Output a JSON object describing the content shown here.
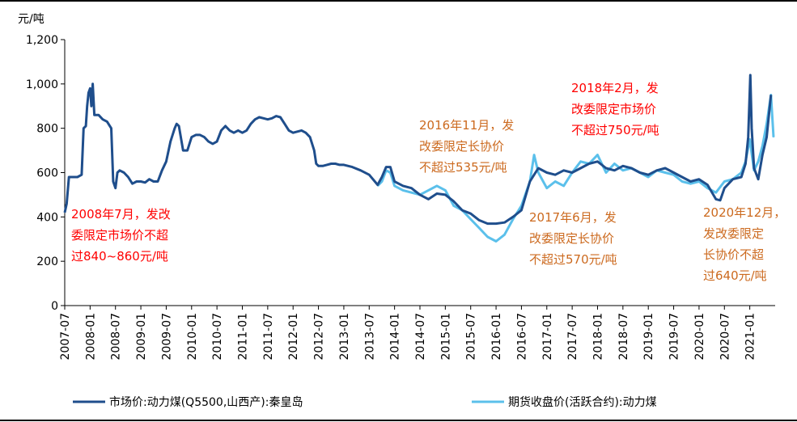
{
  "chart_data": {
    "type": "line",
    "ylabel": "元/吨",
    "ylim": [
      0,
      1200
    ],
    "yticks": [
      0,
      200,
      400,
      600,
      800,
      1000,
      1200
    ],
    "ytick_labels": [
      "0",
      "200",
      "400",
      "600",
      "800",
      "1,000",
      "1,200"
    ],
    "xlim": [
      "2007-07",
      "2021-07"
    ],
    "x_ticks": [
      "2007-07",
      "2008-01",
      "2008-07",
      "2009-01",
      "2009-07",
      "2010-01",
      "2010-07",
      "2011-01",
      "2011-07",
      "2012-01",
      "2012-07",
      "2013-01",
      "2013-07",
      "2014-01",
      "2014-07",
      "2015-01",
      "2015-07",
      "2016-01",
      "2016-07",
      "2017-01",
      "2017-07",
      "2018-01",
      "2018-07",
      "2019-01",
      "2019-07",
      "2020-01",
      "2020-07",
      "2021-01"
    ],
    "legend_position": "bottom",
    "series": [
      {
        "name": "市场价:动力煤(Q5500,山西产):秦皇岛",
        "color": "#1f4e8c",
        "points": [
          [
            "2007-07-01",
            420
          ],
          [
            "2007-07-15",
            460
          ],
          [
            "2007-08-01",
            580
          ],
          [
            "2007-09-01",
            580
          ],
          [
            "2007-10-01",
            580
          ],
          [
            "2007-11-01",
            590
          ],
          [
            "2007-11-15",
            800
          ],
          [
            "2007-12-01",
            810
          ],
          [
            "2007-12-10",
            900
          ],
          [
            "2007-12-20",
            960
          ],
          [
            "2008-01-01",
            980
          ],
          [
            "2008-01-10",
            900
          ],
          [
            "2008-01-20",
            1000
          ],
          [
            "2008-02-01",
            860
          ],
          [
            "2008-03-01",
            860
          ],
          [
            "2008-04-01",
            840
          ],
          [
            "2008-05-01",
            830
          ],
          [
            "2008-06-01",
            800
          ],
          [
            "2008-06-15",
            560
          ],
          [
            "2008-07-01",
            530
          ],
          [
            "2008-07-15",
            600
          ],
          [
            "2008-08-01",
            610
          ],
          [
            "2008-09-01",
            600
          ],
          [
            "2008-10-01",
            580
          ],
          [
            "2008-11-01",
            550
          ],
          [
            "2008-12-01",
            560
          ],
          [
            "2009-01-01",
            560
          ],
          [
            "2009-02-01",
            555
          ],
          [
            "2009-03-01",
            570
          ],
          [
            "2009-04-01",
            560
          ],
          [
            "2009-05-01",
            560
          ],
          [
            "2009-06-01",
            610
          ],
          [
            "2009-07-01",
            650
          ],
          [
            "2009-08-01",
            740
          ],
          [
            "2009-09-01",
            800
          ],
          [
            "2009-09-15",
            820
          ],
          [
            "2009-10-01",
            810
          ],
          [
            "2009-11-01",
            700
          ],
          [
            "2009-12-01",
            700
          ],
          [
            "2010-01-01",
            760
          ],
          [
            "2010-02-01",
            770
          ],
          [
            "2010-03-01",
            770
          ],
          [
            "2010-04-01",
            760
          ],
          [
            "2010-05-01",
            740
          ],
          [
            "2010-06-01",
            730
          ],
          [
            "2010-07-01",
            740
          ],
          [
            "2010-08-01",
            790
          ],
          [
            "2010-09-01",
            810
          ],
          [
            "2010-10-01",
            790
          ],
          [
            "2010-11-01",
            780
          ],
          [
            "2010-12-01",
            790
          ],
          [
            "2011-01-01",
            780
          ],
          [
            "2011-02-01",
            790
          ],
          [
            "2011-03-01",
            820
          ],
          [
            "2011-04-01",
            840
          ],
          [
            "2011-05-01",
            850
          ],
          [
            "2011-06-01",
            845
          ],
          [
            "2011-07-01",
            840
          ],
          [
            "2011-08-01",
            845
          ],
          [
            "2011-09-01",
            855
          ],
          [
            "2011-10-01",
            850
          ],
          [
            "2011-11-01",
            820
          ],
          [
            "2011-12-01",
            790
          ],
          [
            "2012-01-01",
            780
          ],
          [
            "2012-02-01",
            785
          ],
          [
            "2012-03-01",
            790
          ],
          [
            "2012-04-01",
            780
          ],
          [
            "2012-05-01",
            760
          ],
          [
            "2012-06-01",
            700
          ],
          [
            "2012-06-15",
            640
          ],
          [
            "2012-07-01",
            630
          ],
          [
            "2012-08-01",
            630
          ],
          [
            "2012-09-01",
            635
          ],
          [
            "2012-10-01",
            640
          ],
          [
            "2012-11-01",
            640
          ],
          [
            "2012-12-01",
            635
          ],
          [
            "2013-01-01",
            635
          ],
          [
            "2013-03-01",
            625
          ],
          [
            "2013-05-01",
            610
          ],
          [
            "2013-07-01",
            590
          ],
          [
            "2013-09-01",
            545
          ],
          [
            "2013-10-01",
            580
          ],
          [
            "2013-11-01",
            625
          ],
          [
            "2013-12-01",
            625
          ],
          [
            "2014-01-01",
            560
          ],
          [
            "2014-03-01",
            540
          ],
          [
            "2014-05-01",
            530
          ],
          [
            "2014-07-01",
            500
          ],
          [
            "2014-09-01",
            480
          ],
          [
            "2014-11-01",
            505
          ],
          [
            "2015-01-01",
            500
          ],
          [
            "2015-03-01",
            470
          ],
          [
            "2015-05-01",
            430
          ],
          [
            "2015-07-01",
            415
          ],
          [
            "2015-09-01",
            385
          ],
          [
            "2015-11-01",
            370
          ],
          [
            "2016-01-01",
            370
          ],
          [
            "2016-03-01",
            375
          ],
          [
            "2016-05-01",
            400
          ],
          [
            "2016-07-01",
            430
          ],
          [
            "2016-09-01",
            560
          ],
          [
            "2016-10-01",
            590
          ],
          [
            "2016-11-01",
            620
          ],
          [
            "2017-01-01",
            600
          ],
          [
            "2017-03-01",
            590
          ],
          [
            "2017-05-01",
            610
          ],
          [
            "2017-07-01",
            600
          ],
          [
            "2017-09-01",
            620
          ],
          [
            "2017-11-01",
            640
          ],
          [
            "2018-01-01",
            650
          ],
          [
            "2018-03-01",
            620
          ],
          [
            "2018-05-01",
            610
          ],
          [
            "2018-07-01",
            630
          ],
          [
            "2018-09-01",
            620
          ],
          [
            "2018-11-01",
            600
          ],
          [
            "2019-01-01",
            590
          ],
          [
            "2019-03-01",
            610
          ],
          [
            "2019-05-01",
            620
          ],
          [
            "2019-07-01",
            600
          ],
          [
            "2019-09-01",
            580
          ],
          [
            "2019-11-01",
            560
          ],
          [
            "2020-01-01",
            570
          ],
          [
            "2020-03-01",
            545
          ],
          [
            "2020-05-01",
            480
          ],
          [
            "2020-06-01",
            475
          ],
          [
            "2020-07-01",
            530
          ],
          [
            "2020-09-01",
            570
          ],
          [
            "2020-11-01",
            580
          ],
          [
            "2020-12-01",
            640
          ],
          [
            "2020-12-20",
            760
          ],
          [
            "2021-01-05",
            1040
          ],
          [
            "2021-01-15",
            800
          ],
          [
            "2021-02-01",
            620
          ],
          [
            "2021-03-01",
            570
          ],
          [
            "2021-04-01",
            680
          ],
          [
            "2021-05-01",
            760
          ],
          [
            "2021-06-01",
            950
          ]
        ]
      },
      {
        "name": "期货收盘价(活跃合约):动力煤",
        "color": "#5bc0eb",
        "points": [
          [
            "2013-09-01",
            540
          ],
          [
            "2013-10-01",
            560
          ],
          [
            "2013-11-01",
            610
          ],
          [
            "2013-12-01",
            600
          ],
          [
            "2014-01-01",
            540
          ],
          [
            "2014-03-01",
            520
          ],
          [
            "2014-05-01",
            510
          ],
          [
            "2014-07-01",
            500
          ],
          [
            "2014-09-01",
            520
          ],
          [
            "2014-11-01",
            540
          ],
          [
            "2015-01-01",
            520
          ],
          [
            "2015-03-01",
            450
          ],
          [
            "2015-05-01",
            430
          ],
          [
            "2015-07-01",
            390
          ],
          [
            "2015-09-01",
            350
          ],
          [
            "2015-11-01",
            310
          ],
          [
            "2016-01-01",
            290
          ],
          [
            "2016-03-01",
            320
          ],
          [
            "2016-05-01",
            390
          ],
          [
            "2016-07-01",
            450
          ],
          [
            "2016-09-01",
            560
          ],
          [
            "2016-10-01",
            680
          ],
          [
            "2016-11-01",
            600
          ],
          [
            "2017-01-01",
            530
          ],
          [
            "2017-03-01",
            560
          ],
          [
            "2017-05-01",
            540
          ],
          [
            "2017-07-01",
            600
          ],
          [
            "2017-09-01",
            650
          ],
          [
            "2017-11-01",
            640
          ],
          [
            "2018-01-01",
            680
          ],
          [
            "2018-03-01",
            600
          ],
          [
            "2018-05-01",
            640
          ],
          [
            "2018-07-01",
            610
          ],
          [
            "2018-09-01",
            620
          ],
          [
            "2018-11-01",
            600
          ],
          [
            "2019-01-01",
            580
          ],
          [
            "2019-03-01",
            610
          ],
          [
            "2019-05-01",
            600
          ],
          [
            "2019-07-01",
            590
          ],
          [
            "2019-09-01",
            560
          ],
          [
            "2019-11-01",
            550
          ],
          [
            "2020-01-01",
            560
          ],
          [
            "2020-03-01",
            530
          ],
          [
            "2020-05-01",
            510
          ],
          [
            "2020-07-01",
            560
          ],
          [
            "2020-09-01",
            570
          ],
          [
            "2020-11-01",
            600
          ],
          [
            "2020-12-01",
            650
          ],
          [
            "2021-01-01",
            750
          ],
          [
            "2021-02-01",
            610
          ],
          [
            "2021-03-01",
            650
          ],
          [
            "2021-04-01",
            720
          ],
          [
            "2021-05-01",
            820
          ],
          [
            "2021-06-01",
            950
          ],
          [
            "2021-06-20",
            760
          ]
        ]
      }
    ],
    "annotations": [
      {
        "lines": [
          "2008年7月，发改",
          "委限定市场价不超",
          "过840~860元/吨"
        ],
        "color": "#ff0000"
      },
      {
        "lines": [
          "2016年11月，发",
          "改委限定长协价",
          "不超过535元/吨"
        ],
        "color": "#cc6a1f"
      },
      {
        "lines": [
          "2018年2月，发",
          "改委限定市场价",
          "不超过750元/吨"
        ],
        "color": "#ff0000"
      },
      {
        "lines": [
          "2017年6月，发",
          "改委限定长协价",
          "不超过570元/吨"
        ],
        "color": "#cc6a1f"
      },
      {
        "lines": [
          "2020年12月，",
          "发改委限定",
          "长协价不超",
          "过640元/吨"
        ],
        "color": "#cc6a1f"
      }
    ]
  }
}
